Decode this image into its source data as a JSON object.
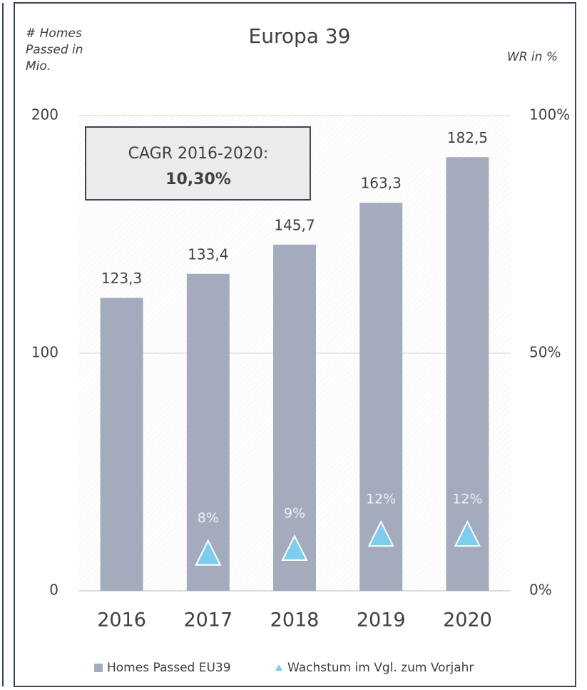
{
  "chart_data": {
    "type": "bar",
    "title": "Europa 39",
    "y_label": "# Homes Passed in Mio.",
    "y2_label": "WR in %",
    "annotation": {
      "title": "CAGR 2016-2020:",
      "value": "10,30%"
    },
    "categories": [
      "2016",
      "2017",
      "2018",
      "2019",
      "2020"
    ],
    "series": [
      {
        "name": "Homes Passed EU39",
        "color": "#a3abbd",
        "values": [
          123.3,
          133.4,
          145.7,
          163.3,
          182.5
        ],
        "value_labels": [
          "123,3",
          "133,4",
          "145,7",
          "163,3",
          "182,5"
        ]
      },
      {
        "name": "Wachstum im Vgl. zum Vorjahr",
        "color": "#7fcdee",
        "axis": "y2",
        "marker": "triangle",
        "values": [
          null,
          8,
          9,
          12,
          12
        ],
        "value_labels": [
          null,
          "8%",
          "9%",
          "12%",
          "12%"
        ]
      }
    ],
    "ylim": [
      0,
      200
    ],
    "yticks": [
      0,
      100,
      200
    ],
    "y2lim": [
      0,
      100
    ],
    "y2ticks": [
      {
        "value": 0,
        "label": "0%"
      },
      {
        "value": 50,
        "label": "50%"
      },
      {
        "value": 100,
        "label": "100%"
      }
    ],
    "grid": true,
    "legend": "bottom"
  }
}
